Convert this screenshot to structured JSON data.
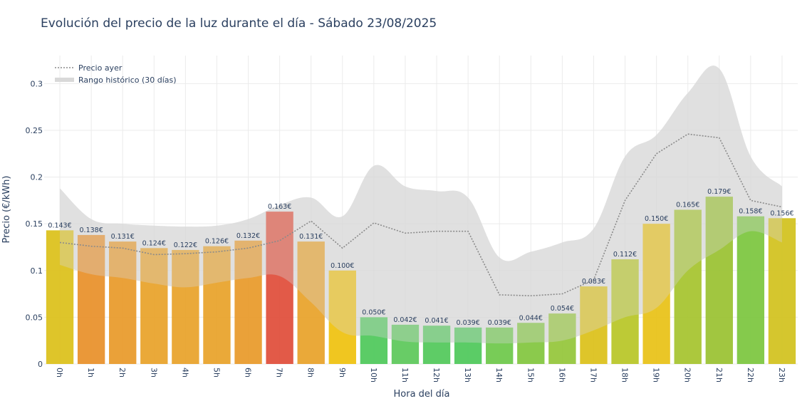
{
  "chart_data": {
    "type": "bar",
    "title": "Evolución del precio de la luz durante el día - Sábado 23/08/2025",
    "xlabel": "Hora del día",
    "ylabel": "Precio (€/kWh)",
    "ylim": [
      0,
      0.33
    ],
    "yticks": [
      0,
      0.05,
      0.1,
      0.15,
      0.2,
      0.25,
      0.3
    ],
    "ytick_labels": [
      "0",
      "0.05",
      "0.1",
      "0.15",
      "0.2",
      "0.25",
      "0.3"
    ],
    "categories": [
      "0h",
      "1h",
      "2h",
      "3h",
      "4h",
      "5h",
      "6h",
      "7h",
      "8h",
      "9h",
      "10h",
      "11h",
      "12h",
      "13h",
      "14h",
      "15h",
      "16h",
      "17h",
      "18h",
      "19h",
      "20h",
      "21h",
      "22h",
      "23h"
    ],
    "values": [
      0.143,
      0.138,
      0.131,
      0.124,
      0.122,
      0.126,
      0.132,
      0.163,
      0.131,
      0.1,
      0.05,
      0.042,
      0.041,
      0.039,
      0.039,
      0.044,
      0.054,
      0.083,
      0.112,
      0.15,
      0.165,
      0.179,
      0.158,
      0.156
    ],
    "value_labels": [
      "0.143€",
      "0.138€",
      "0.131€",
      "0.124€",
      "0.122€",
      "0.126€",
      "0.132€",
      "0.163€",
      "0.131€",
      "0.100€",
      "0.050€",
      "0.042€",
      "0.041€",
      "0.039€",
      "0.039€",
      "0.044€",
      "0.054€",
      "0.083€",
      "0.112€",
      "0.150€",
      "0.165€",
      "0.179€",
      "0.158€",
      "0.156€"
    ],
    "bar_colors": [
      "#dcc11a",
      "#e8902a",
      "#e89a2a",
      "#e8a22a",
      "#e8a22a",
      "#e8a22a",
      "#e89a2a",
      "#e04d3a",
      "#e8a22a",
      "#efc20f",
      "#4fc85a",
      "#5cc85a",
      "#52c85a",
      "#4fc85a",
      "#6ec84a",
      "#82c63e",
      "#94c63a",
      "#dcc11a",
      "#b8c627",
      "#e8c217",
      "#a6c42e",
      "#9ac232",
      "#7cc63e",
      "#d2c21e"
    ],
    "series": [
      {
        "name": "Precio ayer",
        "type": "line",
        "style": "dotted",
        "color": "#8a8a8a",
        "values": [
          0.13,
          0.126,
          0.124,
          0.117,
          0.118,
          0.12,
          0.124,
          0.132,
          0.153,
          0.124,
          0.151,
          0.14,
          0.142,
          0.142,
          0.074,
          0.073,
          0.075,
          0.09,
          0.175,
          0.225,
          0.246,
          0.242,
          0.175,
          0.168
        ]
      },
      {
        "name": "Rango histórico (30 días)",
        "type": "band",
        "color": "#d9d9d9",
        "upper": [
          0.188,
          0.155,
          0.15,
          0.148,
          0.147,
          0.148,
          0.155,
          0.17,
          0.178,
          0.158,
          0.212,
          0.19,
          0.185,
          0.178,
          0.114,
          0.12,
          0.13,
          0.145,
          0.222,
          0.245,
          0.29,
          0.316,
          0.222,
          0.19
        ],
        "lower": [
          0.106,
          0.096,
          0.092,
          0.086,
          0.082,
          0.087,
          0.092,
          0.094,
          0.066,
          0.034,
          0.03,
          0.024,
          0.023,
          0.023,
          0.022,
          0.023,
          0.025,
          0.036,
          0.05,
          0.06,
          0.1,
          0.122,
          0.142,
          0.13
        ]
      }
    ],
    "legend": {
      "placement": "top-left",
      "entries": [
        "Precio ayer",
        "Rango histórico (30 días)"
      ]
    },
    "grid": true
  }
}
